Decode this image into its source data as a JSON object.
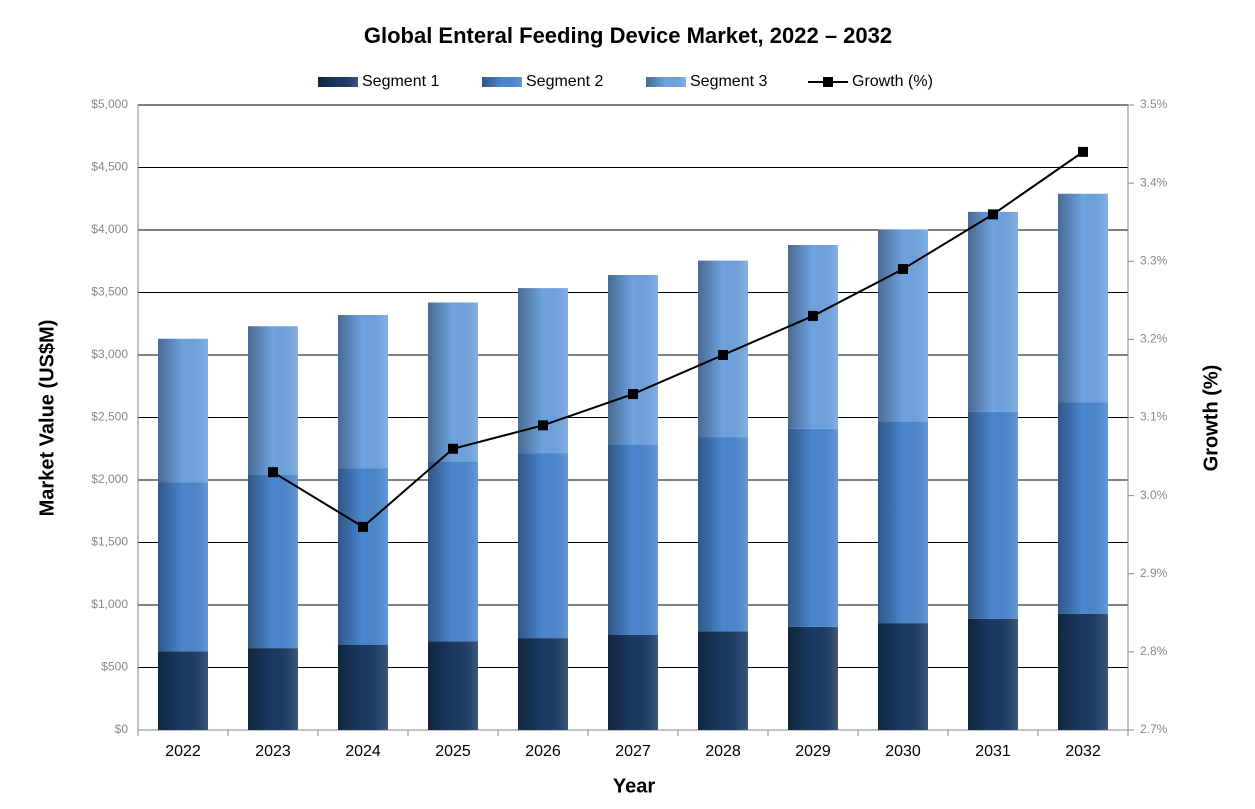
{
  "chart_data": {
    "type": "stacked-bar-line",
    "title": "Global Enteral Feeding Device Market, 2022 – 2032",
    "x_label": "Year",
    "y_label": "Market Value (US$M)",
    "y2_label": "Growth (%)",
    "categories": [
      "2022",
      "2023",
      "2024",
      "2025",
      "2026",
      "2027",
      "2028",
      "2029",
      "2030",
      "2031",
      "2032"
    ],
    "series": [
      {
        "name": "Segment 1",
        "color": "#1b3a63",
        "values": [
          630,
          655,
          680,
          710,
          735,
          760,
          790,
          825,
          855,
          890,
          930
        ]
      },
      {
        "name": "Segment 2",
        "color": "#4a86cf",
        "values": [
          1350,
          1385,
          1415,
          1440,
          1480,
          1520,
          1550,
          1585,
          1615,
          1655,
          1690
        ]
      },
      {
        "name": "Segment 3",
        "color": "#6fa3e0",
        "values": [
          1150,
          1190,
          1225,
          1270,
          1320,
          1360,
          1415,
          1470,
          1535,
          1600,
          1670
        ]
      },
      {
        "name": "Growth (%)",
        "color": "#000000",
        "axis": "y2",
        "values": [
          null,
          3.03,
          2.96,
          3.06,
          3.09,
          3.13,
          3.18,
          3.23,
          3.29,
          3.36,
          3.44
        ]
      }
    ],
    "ylim": [
      0,
      5000
    ],
    "yticks": [
      {
        "value": 0,
        "label": "$0"
      },
      {
        "value": 500,
        "label": "$500"
      },
      {
        "value": 1000,
        "label": "$1,000"
      },
      {
        "value": 1500,
        "label": "$1,500"
      },
      {
        "value": 2000,
        "label": "$2,000"
      },
      {
        "value": 2500,
        "label": "$2,500"
      },
      {
        "value": 3000,
        "label": "$3,000"
      },
      {
        "value": 3500,
        "label": "$3,500"
      },
      {
        "value": 4000,
        "label": "$4,000"
      },
      {
        "value": 4500,
        "label": "$4,500"
      },
      {
        "value": 5000,
        "label": "$5,000"
      }
    ],
    "y2lim": [
      2.7,
      3.5
    ],
    "y2ticks": [
      {
        "value": 2.7,
        "label": "2.7%"
      },
      {
        "value": 2.8,
        "label": "2.8%"
      },
      {
        "value": 2.9,
        "label": "2.9%"
      },
      {
        "value": 3.0,
        "label": "3.0%"
      },
      {
        "value": 3.1,
        "label": "3.1%"
      },
      {
        "value": 3.2,
        "label": "3.2%"
      },
      {
        "value": 3.3,
        "label": "3.3%"
      },
      {
        "value": 3.4,
        "label": "3.4%"
      },
      {
        "value": 3.5,
        "label": "3.5%"
      }
    ],
    "grid": true,
    "legend": "top"
  }
}
